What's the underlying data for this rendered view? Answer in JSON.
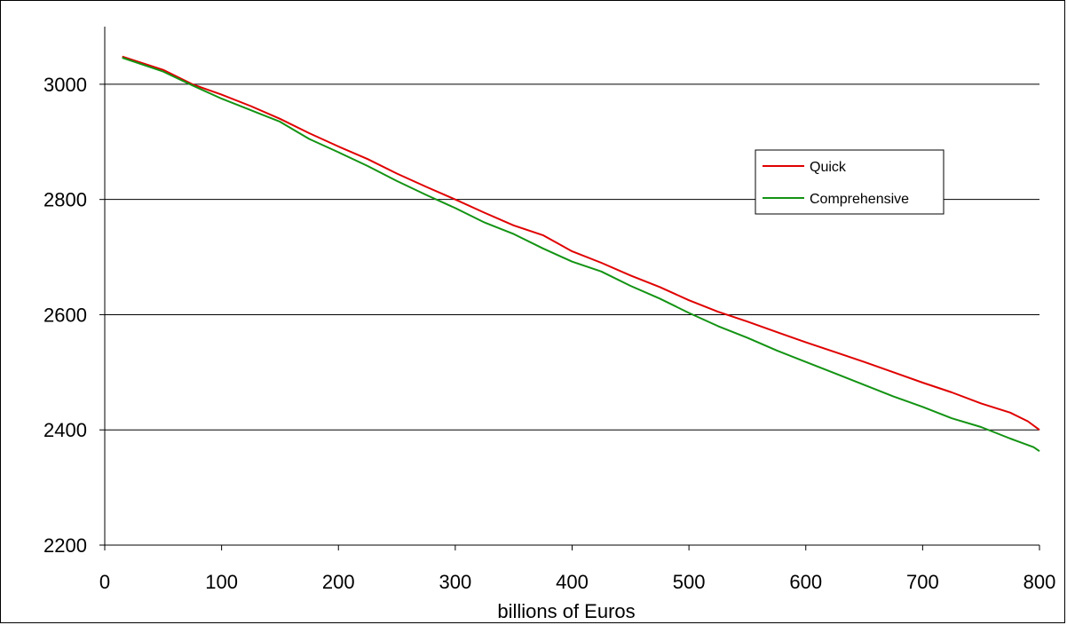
{
  "chart_data": {
    "type": "line",
    "title": "",
    "xlabel": "billions of Euros",
    "ylabel": "",
    "xlim": [
      0,
      800
    ],
    "ylim": [
      2200,
      3100
    ],
    "x_ticks": [
      "0",
      "100",
      "200",
      "300",
      "400",
      "500",
      "600",
      "700",
      "800"
    ],
    "y_ticks": [
      "2200",
      "2400",
      "2600",
      "2800",
      "3000"
    ],
    "grid": "horizontal",
    "legend_position": "right",
    "series": [
      {
        "name": "Quick",
        "color": "#e00000",
        "points": [
          [
            15,
            3048
          ],
          [
            50,
            3025
          ],
          [
            75,
            3000
          ],
          [
            100,
            2982
          ],
          [
            125,
            2962
          ],
          [
            150,
            2940
          ],
          [
            175,
            2915
          ],
          [
            200,
            2892
          ],
          [
            225,
            2870
          ],
          [
            250,
            2845
          ],
          [
            275,
            2822
          ],
          [
            300,
            2800
          ],
          [
            325,
            2777
          ],
          [
            350,
            2755
          ],
          [
            375,
            2738
          ],
          [
            400,
            2710
          ],
          [
            425,
            2690
          ],
          [
            450,
            2668
          ],
          [
            475,
            2648
          ],
          [
            500,
            2625
          ],
          [
            525,
            2605
          ],
          [
            550,
            2588
          ],
          [
            575,
            2570
          ],
          [
            600,
            2552
          ],
          [
            625,
            2535
          ],
          [
            650,
            2518
          ],
          [
            675,
            2500
          ],
          [
            700,
            2482
          ],
          [
            725,
            2465
          ],
          [
            750,
            2446
          ],
          [
            775,
            2430
          ],
          [
            790,
            2415
          ],
          [
            800,
            2400
          ]
        ]
      },
      {
        "name": "Comprehensive",
        "color": "#139313",
        "points": [
          [
            15,
            3046
          ],
          [
            50,
            3022
          ],
          [
            75,
            2998
          ],
          [
            100,
            2975
          ],
          [
            125,
            2955
          ],
          [
            150,
            2935
          ],
          [
            175,
            2905
          ],
          [
            200,
            2882
          ],
          [
            225,
            2858
          ],
          [
            250,
            2832
          ],
          [
            275,
            2808
          ],
          [
            300,
            2785
          ],
          [
            325,
            2760
          ],
          [
            350,
            2740
          ],
          [
            375,
            2715
          ],
          [
            400,
            2692
          ],
          [
            425,
            2675
          ],
          [
            450,
            2650
          ],
          [
            475,
            2628
          ],
          [
            500,
            2603
          ],
          [
            525,
            2580
          ],
          [
            550,
            2560
          ],
          [
            575,
            2538
          ],
          [
            600,
            2518
          ],
          [
            625,
            2498
          ],
          [
            650,
            2478
          ],
          [
            675,
            2458
          ],
          [
            700,
            2440
          ],
          [
            725,
            2420
          ],
          [
            750,
            2405
          ],
          [
            775,
            2385
          ],
          [
            795,
            2370
          ],
          [
            800,
            2363
          ]
        ]
      }
    ]
  }
}
